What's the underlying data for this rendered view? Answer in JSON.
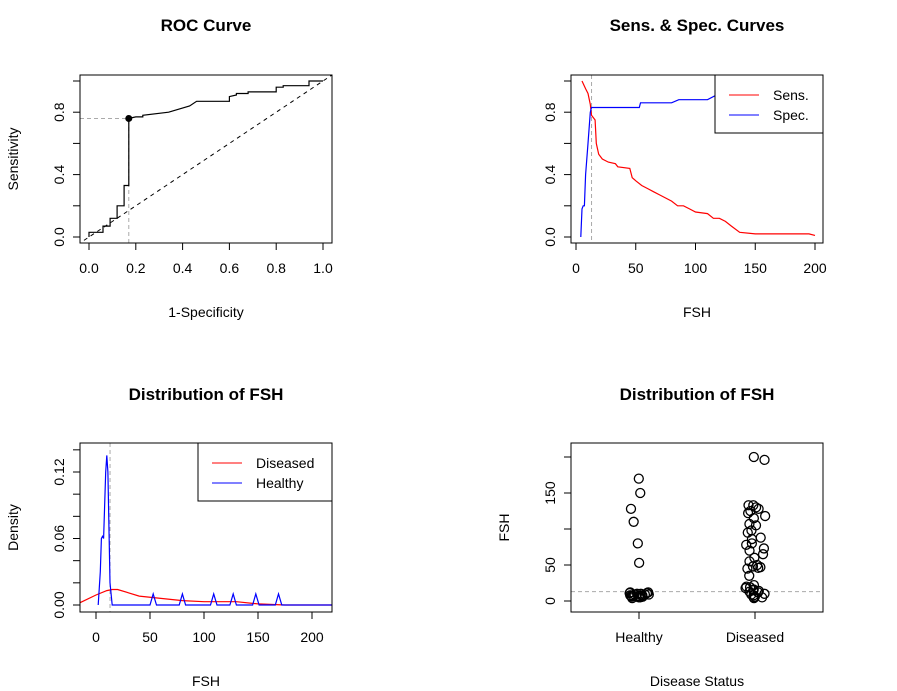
{
  "chart_data": [
    {
      "type": "line",
      "title": "ROC Curve",
      "xlabel": "1-Specificity",
      "ylabel": "Sensitivity",
      "xlim": [
        0,
        1
      ],
      "ylim": [
        0,
        1
      ],
      "xticks": [
        "0.0",
        "0.2",
        "0.4",
        "0.6",
        "0.8",
        "1.0"
      ],
      "yticks": [
        "0.0",
        "",
        "0.4",
        "",
        "0.8",
        ""
      ],
      "series": [
        {
          "color": "#000000",
          "style": "step",
          "points": [
            [
              0,
              0
            ],
            [
              0,
              0.03
            ],
            [
              0.06,
              0.03
            ],
            [
              0.06,
              0.07
            ],
            [
              0.09,
              0.07
            ],
            [
              0.09,
              0.12
            ],
            [
              0.12,
              0.12
            ],
            [
              0.12,
              0.2
            ],
            [
              0.15,
              0.2
            ],
            [
              0.15,
              0.33
            ],
            [
              0.17,
              0.33
            ],
            [
              0.17,
              0.76
            ],
            [
              0.2,
              0.77
            ],
            [
              0.23,
              0.77
            ],
            [
              0.23,
              0.78
            ],
            [
              0.34,
              0.8
            ],
            [
              0.43,
              0.84
            ],
            [
              0.46,
              0.87
            ],
            [
              0.6,
              0.87
            ],
            [
              0.6,
              0.9
            ],
            [
              0.63,
              0.91
            ],
            [
              0.63,
              0.92
            ],
            [
              0.68,
              0.92
            ],
            [
              0.68,
              0.93
            ],
            [
              0.8,
              0.93
            ],
            [
              0.8,
              0.96
            ],
            [
              0.83,
              0.96
            ],
            [
              0.83,
              0.97
            ],
            [
              0.94,
              0.97
            ],
            [
              0.94,
              1.0
            ],
            [
              1,
              1
            ]
          ]
        }
      ],
      "reference_line": "diagonal dashed",
      "optimal_point": [
        0.17,
        0.76
      ]
    },
    {
      "type": "line",
      "title": "Sens. & Spec. Curves",
      "xlabel": "FSH",
      "ylabel": "",
      "xlim": [
        0,
        200
      ],
      "ylim": [
        0,
        1
      ],
      "xticks": [
        "0",
        "50",
        "100",
        "150",
        "200"
      ],
      "yticks": [
        "0.0",
        "",
        "0.4",
        "",
        "0.8",
        ""
      ],
      "legend": {
        "position": "top-right",
        "entries": [
          "Sens.",
          "Spec."
        ]
      },
      "cutoff": 13,
      "series": [
        {
          "name": "Sens.",
          "color": "#ff0000",
          "points": [
            [
              5,
              1.0
            ],
            [
              8,
              0.95
            ],
            [
              10,
              0.92
            ],
            [
              12,
              0.85
            ],
            [
              13,
              0.78
            ],
            [
              15,
              0.76
            ],
            [
              16,
              0.75
            ],
            [
              17,
              0.6
            ],
            [
              19,
              0.53
            ],
            [
              22,
              0.5
            ],
            [
              27,
              0.48
            ],
            [
              33,
              0.47
            ],
            [
              35,
              0.45
            ],
            [
              45,
              0.44
            ],
            [
              47,
              0.38
            ],
            [
              50,
              0.36
            ],
            [
              55,
              0.33
            ],
            [
              60,
              0.31
            ],
            [
              65,
              0.29
            ],
            [
              70,
              0.27
            ],
            [
              80,
              0.23
            ],
            [
              85,
              0.2
            ],
            [
              90,
              0.2
            ],
            [
              95,
              0.18
            ],
            [
              100,
              0.16
            ],
            [
              110,
              0.15
            ],
            [
              115,
              0.12
            ],
            [
              120,
              0.12
            ],
            [
              125,
              0.1
            ],
            [
              130,
              0.07
            ],
            [
              137,
              0.03
            ],
            [
              150,
              0.02
            ],
            [
              195,
              0.02
            ],
            [
              200,
              0.01
            ]
          ]
        },
        {
          "name": "Spec.",
          "color": "#0000ff",
          "points": [
            [
              4,
              0
            ],
            [
              5,
              0.18
            ],
            [
              6,
              0.2
            ],
            [
              7,
              0.2
            ],
            [
              8,
              0.4
            ],
            [
              10,
              0.6
            ],
            [
              12,
              0.8
            ],
            [
              13,
              0.83
            ],
            [
              53,
              0.83
            ],
            [
              54,
              0.86
            ],
            [
              80,
              0.86
            ],
            [
              86,
              0.88
            ],
            [
              110,
              0.88
            ],
            [
              120,
              0.92
            ],
            [
              150,
              0.95
            ],
            [
              170,
              1.0
            ],
            [
              200,
              1.0
            ]
          ]
        }
      ]
    },
    {
      "type": "line",
      "title": "Distribution of FSH",
      "xlabel": "FSH",
      "ylabel": "Density",
      "xlim": [
        -15,
        220
      ],
      "ylim": [
        0,
        0.14
      ],
      "xticks": [
        "0",
        "50",
        "100",
        "150",
        "200"
      ],
      "yticks": [
        "0.00",
        "",
        "",
        "0.06",
        "",
        "",
        "0.12",
        ""
      ],
      "legend": {
        "position": "top-right",
        "entries": [
          "Diseased",
          "Healthy"
        ]
      },
      "cutoff": 13,
      "series": [
        {
          "name": "Diseased",
          "color": "#ff0000",
          "points": [
            [
              -15,
              0.002
            ],
            [
              0,
              0.009
            ],
            [
              10,
              0.013
            ],
            [
              15,
              0.014
            ],
            [
              20,
              0.014
            ],
            [
              30,
              0.011
            ],
            [
              40,
              0.008
            ],
            [
              60,
              0.006
            ],
            [
              80,
              0.004
            ],
            [
              100,
              0.003
            ],
            [
              130,
              0.003
            ],
            [
              150,
              0.001
            ],
            [
              175,
              0
            ],
            [
              220,
              0
            ]
          ]
        },
        {
          "name": "Healthy",
          "color": "#0000ff",
          "points": [
            [
              2,
              0
            ],
            [
              4,
              0.03
            ],
            [
              5,
              0.06
            ],
            [
              6,
              0.062
            ],
            [
              7,
              0.06
            ],
            [
              9,
              0.12
            ],
            [
              10,
              0.135
            ],
            [
              11,
              0.12
            ],
            [
              13,
              0.02
            ],
            [
              15,
              0
            ],
            [
              50,
              0
            ],
            [
              53,
              0.01
            ],
            [
              56,
              0
            ],
            [
              77,
              0
            ],
            [
              80,
              0.01
            ],
            [
              83,
              0
            ],
            [
              106,
              0
            ],
            [
              109,
              0.01
            ],
            [
              112,
              0
            ],
            [
              124,
              0
            ],
            [
              127,
              0.01
            ],
            [
              130,
              0
            ],
            [
              145,
              0
            ],
            [
              148,
              0.01
            ],
            [
              151,
              0
            ],
            [
              166,
              0
            ],
            [
              169,
              0.01
            ],
            [
              172,
              0
            ],
            [
              220,
              0
            ]
          ]
        }
      ]
    },
    {
      "type": "scatter",
      "title": "Distribution of FSH",
      "xlabel": "Disease Status",
      "ylabel": "FSH",
      "categories": [
        "Healthy",
        "Diseased"
      ],
      "ylim": [
        -15,
        210
      ],
      "yticks": [
        "0",
        "50",
        "",
        "150",
        ""
      ],
      "cutoff": 13,
      "series": [
        {
          "name": "Healthy",
          "values": [
            170,
            150,
            128,
            110,
            80,
            53,
            12,
            11,
            10,
            10,
            9,
            9,
            8,
            8,
            7,
            7,
            6,
            6,
            5,
            5,
            4,
            11,
            12,
            9,
            7
          ]
        },
        {
          "name": "Diseased",
          "values": [
            200,
            196,
            133,
            133,
            130,
            128,
            125,
            122,
            118,
            115,
            107,
            105,
            98,
            95,
            88,
            86,
            80,
            78,
            73,
            70,
            65,
            60,
            55,
            50,
            48,
            47,
            46,
            45,
            35,
            22,
            20,
            18,
            15,
            14,
            12,
            10,
            9,
            8,
            6,
            5,
            5,
            4,
            16,
            19,
            13
          ]
        }
      ]
    }
  ]
}
